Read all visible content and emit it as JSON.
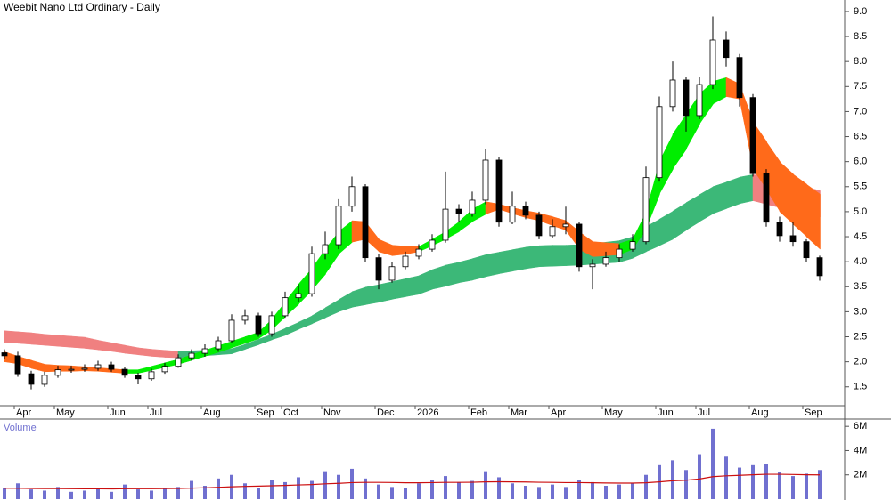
{
  "chart_data": [
    {
      "type": "candlestick",
      "title": "Weebit Nano Ltd Ordinary - Daily",
      "categories": [
        null,
        "Apr",
        null,
        null,
        "May",
        null,
        null,
        null,
        "Jun",
        null,
        null,
        "Jul",
        null,
        null,
        null,
        "Aug",
        null,
        null,
        null,
        "Sep",
        null,
        "Oct",
        null,
        null,
        "Nov",
        null,
        null,
        null,
        "Dec",
        null,
        null,
        "2026",
        null,
        null,
        null,
        "Feb",
        null,
        null,
        "Mar",
        null,
        null,
        "Apr",
        null,
        null,
        null,
        "May",
        null,
        null,
        null,
        "Jun",
        null,
        null,
        "Jul",
        null,
        null,
        null,
        "Aug",
        null,
        null,
        null,
        "Sep",
        null
      ],
      "open": [
        2.18,
        2.12,
        1.76,
        1.55,
        1.73,
        1.84,
        1.85,
        1.87,
        1.94,
        1.85,
        1.73,
        1.66,
        1.8,
        1.91,
        2.08,
        2.17,
        2.26,
        2.42,
        2.83,
        2.92,
        2.56,
        2.92,
        3.28,
        3.36,
        4.16,
        4.34,
        5.11,
        5.5,
        4.08,
        3.63,
        3.9,
        4.11,
        4.25,
        4.43,
        5.05,
        4.96,
        5.23,
        6.03,
        4.79,
        5.11,
        4.93,
        4.52,
        4.7,
        4.75,
        3.9,
        3.95,
        4.08,
        4.25,
        4.4,
        5.68,
        7.1,
        7.63,
        6.92,
        7.54,
        8.43,
        8.08,
        7.28,
        5.76,
        4.79,
        4.52,
        4.4,
        4.08
      ],
      "high": [
        2.25,
        2.2,
        1.82,
        1.8,
        1.92,
        1.92,
        1.95,
        2.02,
        2.0,
        1.9,
        1.78,
        1.86,
        1.98,
        2.15,
        2.25,
        2.35,
        2.5,
        2.95,
        3.05,
        2.98,
        3.0,
        3.4,
        3.55,
        4.3,
        4.6,
        5.25,
        5.7,
        5.55,
        4.15,
        4.0,
        4.2,
        4.35,
        4.55,
        5.8,
        5.15,
        5.4,
        6.25,
        6.1,
        5.4,
        5.2,
        5.0,
        4.85,
        5.1,
        4.8,
        4.05,
        4.2,
        4.35,
        4.55,
        5.9,
        7.3,
        8.0,
        7.7,
        7.7,
        8.9,
        8.6,
        8.15,
        7.35,
        5.85,
        4.9,
        4.8,
        4.45,
        4.12
      ],
      "low": [
        2.05,
        1.7,
        1.45,
        1.5,
        1.68,
        1.78,
        1.8,
        1.82,
        1.8,
        1.68,
        1.55,
        1.62,
        1.76,
        1.88,
        2.02,
        2.1,
        2.2,
        2.38,
        2.75,
        2.5,
        2.5,
        2.88,
        3.2,
        3.3,
        4.05,
        4.25,
        5.0,
        4.0,
        3.45,
        3.58,
        3.85,
        4.05,
        4.2,
        4.38,
        4.8,
        4.9,
        5.15,
        4.7,
        4.75,
        4.85,
        4.45,
        4.48,
        4.55,
        3.8,
        3.45,
        3.9,
        4.0,
        4.2,
        4.35,
        5.6,
        7.0,
        6.6,
        6.85,
        7.45,
        7.9,
        7.1,
        5.7,
        4.7,
        4.4,
        4.3,
        4.0,
        3.62
      ],
      "close": [
        2.12,
        1.76,
        1.55,
        1.73,
        1.84,
        1.85,
        1.87,
        1.94,
        1.85,
        1.73,
        1.66,
        1.8,
        1.91,
        2.08,
        2.17,
        2.26,
        2.42,
        2.83,
        2.92,
        2.56,
        2.92,
        3.28,
        3.36,
        4.16,
        4.34,
        5.11,
        5.5,
        4.08,
        3.63,
        3.9,
        4.11,
        4.25,
        4.43,
        5.05,
        4.96,
        5.23,
        6.03,
        4.79,
        5.11,
        4.93,
        4.52,
        4.7,
        4.75,
        3.9,
        3.95,
        4.08,
        4.25,
        4.4,
        5.68,
        7.1,
        7.63,
        6.92,
        7.54,
        8.43,
        8.08,
        7.28,
        5.76,
        4.79,
        4.52,
        4.4,
        4.08,
        3.72
      ],
      "bands": [
        {
          "up_color": "#3cb878",
          "down_color": "#f08080",
          "upper": [
            2.62,
            2.6,
            2.58,
            2.55,
            2.53,
            2.51,
            2.49,
            2.43,
            2.38,
            2.33,
            2.28,
            2.25,
            2.23,
            2.21,
            2.22,
            2.23,
            2.25,
            2.26,
            2.35,
            2.45,
            2.55,
            2.67,
            2.79,
            2.92,
            3.08,
            3.24,
            3.4,
            3.49,
            3.54,
            3.6,
            3.66,
            3.72,
            3.84,
            3.93,
            3.99,
            4.06,
            4.14,
            4.19,
            4.24,
            4.29,
            4.32,
            4.33,
            4.33,
            4.34,
            4.36,
            4.39,
            4.42,
            4.5,
            4.7,
            4.85,
            5.01,
            5.18,
            5.34,
            5.5,
            5.59,
            5.69,
            5.74,
            5.7,
            5.64,
            5.56,
            5.49,
            5.42
          ],
          "lower": [
            2.39,
            2.37,
            2.35,
            2.33,
            2.31,
            2.29,
            2.27,
            2.24,
            2.21,
            2.17,
            2.14,
            2.11,
            2.09,
            2.08,
            2.1,
            2.12,
            2.14,
            2.16,
            2.25,
            2.34,
            2.44,
            2.53,
            2.65,
            2.76,
            2.88,
            3.0,
            3.09,
            3.14,
            3.19,
            3.25,
            3.3,
            3.35,
            3.45,
            3.51,
            3.58,
            3.63,
            3.7,
            3.76,
            3.81,
            3.86,
            3.9,
            3.91,
            3.92,
            3.93,
            3.95,
            3.97,
            3.99,
            4.07,
            4.2,
            4.32,
            4.45,
            4.63,
            4.8,
            4.96,
            5.06,
            5.16,
            5.22,
            5.15,
            5.08,
            5.02,
            4.95,
            4.89
          ]
        },
        {
          "up_color": "#00ee00",
          "down_color": "#ff6a1a",
          "upper": [
            2.2,
            2.11,
            2.03,
            1.95,
            1.93,
            1.92,
            1.9,
            1.88,
            1.86,
            1.84,
            1.84,
            1.91,
            1.98,
            2.05,
            2.14,
            2.23,
            2.32,
            2.41,
            2.5,
            2.59,
            2.85,
            3.2,
            3.55,
            3.87,
            4.25,
            4.6,
            4.82,
            4.8,
            4.45,
            4.33,
            4.31,
            4.3,
            4.45,
            4.6,
            4.8,
            5.05,
            5.2,
            5.15,
            5.08,
            5.02,
            4.97,
            4.9,
            4.82,
            4.6,
            4.4,
            4.38,
            4.36,
            4.45,
            5.0,
            6.0,
            6.55,
            6.95,
            7.35,
            7.6,
            7.68,
            7.55,
            6.8,
            6.4,
            6.0,
            5.75,
            5.55,
            5.35
          ],
          "lower": [
            2.0,
            1.96,
            1.87,
            1.8,
            1.81,
            1.81,
            1.82,
            1.81,
            1.79,
            1.77,
            1.77,
            1.83,
            1.89,
            1.95,
            2.03,
            2.11,
            2.19,
            2.28,
            2.37,
            2.46,
            2.64,
            2.9,
            3.15,
            3.43,
            3.75,
            4.15,
            4.39,
            4.45,
            4.2,
            4.12,
            4.15,
            4.2,
            4.32,
            4.45,
            4.6,
            4.8,
            4.95,
            5.05,
            4.96,
            4.88,
            4.82,
            4.72,
            4.63,
            4.25,
            4.1,
            4.12,
            4.14,
            4.25,
            4.65,
            5.35,
            5.85,
            6.25,
            6.75,
            7.15,
            7.3,
            7.25,
            5.85,
            5.45,
            5.0,
            4.75,
            4.5,
            4.25
          ]
        }
      ],
      "ylim": [
        1.14,
        9.23
      ],
      "yticks": [
        {
          "value": 1.5,
          "label": "1.5"
        },
        {
          "value": 2,
          "label": "2.0"
        },
        {
          "value": 2.5,
          "label": "2.5"
        },
        {
          "value": 3,
          "label": "3.0"
        },
        {
          "value": 3.5,
          "label": "3.5"
        },
        {
          "value": 4,
          "label": "4.0"
        },
        {
          "value": 4.5,
          "label": "4.5"
        },
        {
          "value": 5,
          "label": "5.0"
        },
        {
          "value": 5.5,
          "label": "5.5"
        },
        {
          "value": 6,
          "label": "6.0"
        },
        {
          "value": 6.5,
          "label": "6.5"
        },
        {
          "value": 7,
          "label": "7.0"
        },
        {
          "value": 7.5,
          "label": "7.5"
        },
        {
          "value": 8,
          "label": "8.0"
        },
        {
          "value": 8.5,
          "label": "8.5"
        },
        {
          "value": 9,
          "label": "9.0"
        }
      ]
    },
    {
      "type": "bar",
      "title": "Volume",
      "color": "#7070d0",
      "line_color": "#cc1010",
      "values": [
        900000,
        1300000,
        800000,
        700000,
        1000000,
        600000,
        700000,
        900000,
        600000,
        1200000,
        800000,
        700000,
        900000,
        1000000,
        1500000,
        1100000,
        1700000,
        2000000,
        1300000,
        900000,
        1600000,
        1400000,
        1800000,
        1500000,
        2300000,
        2000000,
        2500000,
        1700000,
        1200000,
        1000000,
        900000,
        1300000,
        1600000,
        1900000,
        1400000,
        1500000,
        2300000,
        1800000,
        1300000,
        1100000,
        1000000,
        1200000,
        1000000,
        1600000,
        1400000,
        1100000,
        1200000,
        1300000,
        2000000,
        2800000,
        3200000,
        2400000,
        3700000,
        5800000,
        3500000,
        2600000,
        2800000,
        2900000,
        2200000,
        1900000,
        2100000,
        2400000
      ],
      "line": [
        900000,
        900000,
        880000,
        870000,
        870000,
        860000,
        850000,
        850000,
        840000,
        860000,
        860000,
        860000,
        870000,
        880000,
        910000,
        930000,
        970000,
        1020000,
        1050000,
        1070000,
        1100000,
        1130000,
        1170000,
        1200000,
        1260000,
        1300000,
        1360000,
        1380000,
        1380000,
        1370000,
        1350000,
        1350000,
        1360000,
        1380000,
        1380000,
        1390000,
        1420000,
        1430000,
        1420000,
        1410000,
        1390000,
        1380000,
        1360000,
        1360000,
        1350000,
        1330000,
        1320000,
        1320000,
        1350000,
        1420000,
        1510000,
        1560000,
        1660000,
        1850000,
        1920000,
        1960000,
        2010000,
        2050000,
        2050000,
        2030000,
        2010000,
        2000000
      ],
      "ylim": [
        0,
        6600000
      ],
      "yticks": [
        {
          "value": 2000000,
          "label": "2M"
        },
        {
          "value": 4000000,
          "label": "4M"
        },
        {
          "value": 6000000,
          "label": "6M"
        }
      ]
    }
  ]
}
